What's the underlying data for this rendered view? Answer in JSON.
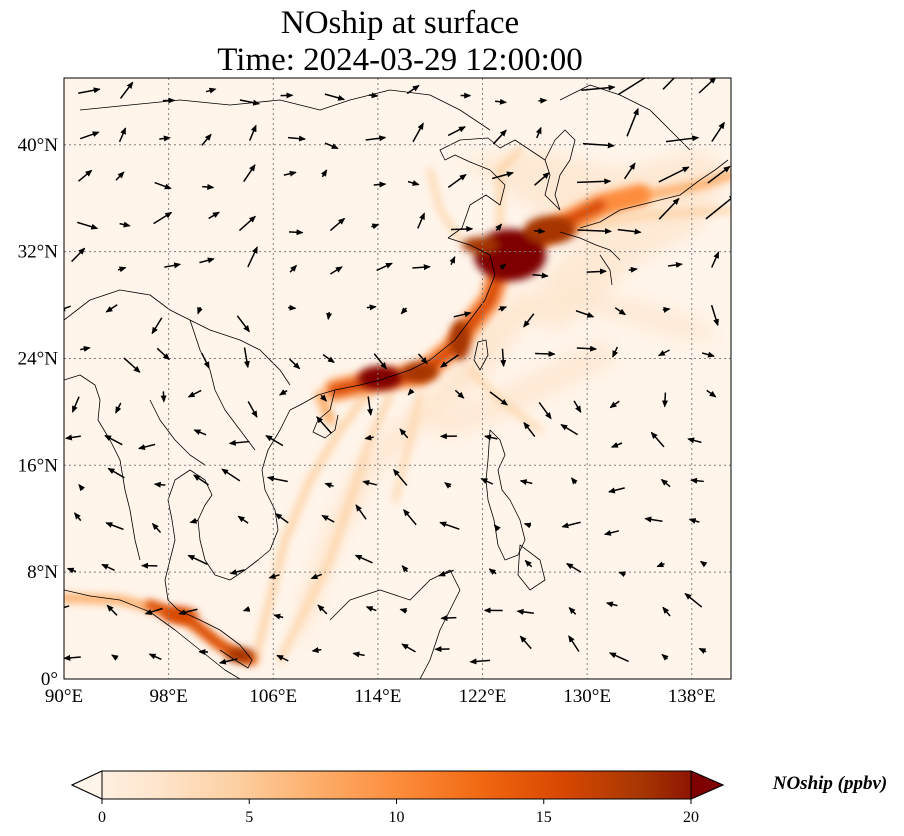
{
  "title": {
    "line1": "NOship at surface",
    "line2": "Time: 2024-03-29 12:00:00"
  },
  "map": {
    "lon_range": [
      90,
      141
    ],
    "lat_range": [
      0,
      45
    ],
    "lon_ticks": [
      "90°E",
      "98°E",
      "106°E",
      "114°E",
      "122°E",
      "130°E",
      "138°E"
    ],
    "lon_tick_values": [
      90,
      98,
      106,
      114,
      122,
      130,
      138
    ],
    "lat_ticks": [
      "0°",
      "8°N",
      "16°N",
      "24°N",
      "32°N",
      "40°N"
    ],
    "lat_tick_values": [
      0,
      8,
      16,
      24,
      32,
      40
    ],
    "gridlines": true,
    "field_colors": {
      "low": "#fff5eb",
      "mid": "#fdae6b",
      "high": "#d94801",
      "max": "#7f0000"
    }
  },
  "colorbar": {
    "label": "NOship (ppbv)",
    "ticks": [
      "0",
      "5",
      "10",
      "15",
      "20"
    ],
    "tick_values": [
      0,
      5,
      10,
      15,
      20
    ],
    "range": [
      0,
      20
    ],
    "extend": "both",
    "stops": [
      "#fff5eb",
      "#fee6ce",
      "#fdd0a2",
      "#fdae6b",
      "#fd8d3c",
      "#f16913",
      "#d94801",
      "#a63603",
      "#7f0000"
    ]
  }
}
